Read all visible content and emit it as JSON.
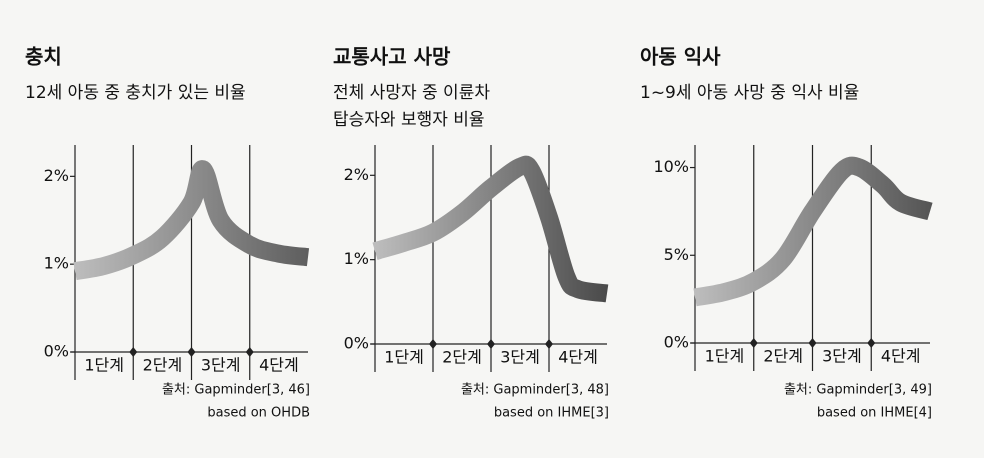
{
  "chart_data": [
    {
      "type": "line",
      "title": "충치",
      "subtitle": [
        "12세 아동 중 충치가 있는 비율"
      ],
      "x": [
        0,
        0.5,
        1,
        1.5,
        2,
        2.2,
        2.5,
        3,
        3.5,
        4
      ],
      "xlim": [
        0,
        4
      ],
      "xticks": [
        {
          "value": 0.5,
          "label": "1단계"
        },
        {
          "value": 1.5,
          "label": "2단계"
        },
        {
          "value": 2.5,
          "label": "3단계"
        },
        {
          "value": 3.5,
          "label": "4단계"
        }
      ],
      "dividers": [
        1,
        2,
        3
      ],
      "series": [
        {
          "color": "#5e5e5e",
          "values": [
            0.92,
            0.98,
            1.1,
            1.3,
            1.7,
            2.08,
            1.5,
            1.22,
            1.12,
            1.08
          ]
        }
      ],
      "ylim": [
        0,
        2.3
      ],
      "yticks": [
        {
          "value": 0,
          "label": "0%"
        },
        {
          "value": 1,
          "label": "1%"
        },
        {
          "value": 2,
          "label": "2%"
        }
      ],
      "source": [
        "출처: Gapminder[3, 46]",
        "based on OHDB"
      ]
    },
    {
      "type": "line",
      "title": "교통사고 사망",
      "subtitle": [
        "전체 사망자 중 이륜차",
        "탑승자와 보행자 비율"
      ],
      "x": [
        0,
        0.5,
        1,
        1.5,
        2,
        2.5,
        2.7,
        3,
        3.3,
        3.5,
        4
      ],
      "xlim": [
        0,
        4
      ],
      "xticks": [
        {
          "value": 0.5,
          "label": "1단계"
        },
        {
          "value": 1.5,
          "label": "2단계"
        },
        {
          "value": 2.5,
          "label": "3단계"
        },
        {
          "value": 3.5,
          "label": "4단계"
        }
      ],
      "dividers": [
        1,
        2,
        3
      ],
      "series": [
        {
          "color": "#4a4a4a",
          "values": [
            1.1,
            1.2,
            1.32,
            1.55,
            1.85,
            2.1,
            2.05,
            1.5,
            0.8,
            0.65,
            0.6
          ]
        }
      ],
      "ylim": [
        0,
        2.3
      ],
      "yticks": [
        {
          "value": 0,
          "label": "0%"
        },
        {
          "value": 1,
          "label": "1%"
        },
        {
          "value": 2,
          "label": "2%"
        }
      ],
      "source": [
        "출처: Gapminder[3, 48]",
        "based on IHME[3]"
      ]
    },
    {
      "type": "line",
      "title": "아동 익사",
      "subtitle": [
        "1~9세 아동 사망 중 익사 비율"
      ],
      "x": [
        0,
        0.5,
        1,
        1.5,
        2,
        2.5,
        2.8,
        3.2,
        3.5,
        4
      ],
      "xlim": [
        0,
        4
      ],
      "xticks": [
        {
          "value": 0.5,
          "label": "1단계"
        },
        {
          "value": 1.5,
          "label": "2단계"
        },
        {
          "value": 2.5,
          "label": "3단계"
        },
        {
          "value": 3.5,
          "label": "4단계"
        }
      ],
      "dividers": [
        1,
        2,
        3
      ],
      "series": [
        {
          "color": "#555555",
          "values": [
            2.6,
            2.9,
            3.5,
            4.8,
            7.5,
            9.8,
            10,
            9.0,
            8.0,
            7.5
          ]
        }
      ],
      "ylim": [
        0,
        11
      ],
      "yticks": [
        {
          "value": 0,
          "label": "0%"
        },
        {
          "value": 5,
          "label": "5%"
        },
        {
          "value": 10,
          "label": "10%"
        }
      ],
      "source": [
        "출처: Gapminder[3, 49]",
        "based on IHME[4]"
      ]
    }
  ]
}
